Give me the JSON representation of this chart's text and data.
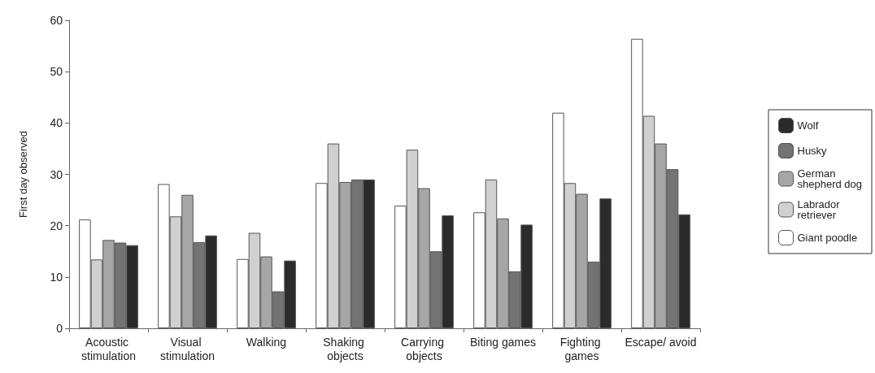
{
  "chart_data": {
    "type": "bar",
    "ylabel": "First day observed",
    "categories": [
      "Acoustic stimulation",
      "Visual stimulation",
      "Walking",
      "Shaking objects",
      "Carrying objects",
      "Biting games",
      "Fighting games",
      "Escape/ avoid"
    ],
    "series": [
      {
        "name": "Giant poodle",
        "color": "#ffffff",
        "values": [
          21.2,
          28.1,
          13.5,
          28.3,
          23.9,
          22.6,
          42,
          56.4
        ]
      },
      {
        "name": "Labrador retriever",
        "color": "#d0d0d0",
        "values": [
          13.4,
          21.8,
          18.6,
          36,
          34.8,
          29,
          28.3,
          41.4
        ]
      },
      {
        "name": "German shepherd dog",
        "color": "#a6a6a6",
        "values": [
          17.2,
          26,
          14,
          28.5,
          27.3,
          21.4,
          26.2,
          36
        ]
      },
      {
        "name": "Husky",
        "color": "#737373",
        "values": [
          16.7,
          16.8,
          7.2,
          29,
          15,
          11.1,
          13,
          31
        ]
      },
      {
        "name": "Wolf",
        "color": "#2b2b2b",
        "values": [
          16.2,
          18.1,
          13.2,
          29,
          22,
          20.2,
          25.3,
          22.2
        ]
      }
    ],
    "ylim": [
      0,
      60
    ],
    "yticks": [
      0,
      10,
      20,
      30,
      40,
      50,
      60
    ],
    "grid": false,
    "legend": "right"
  }
}
